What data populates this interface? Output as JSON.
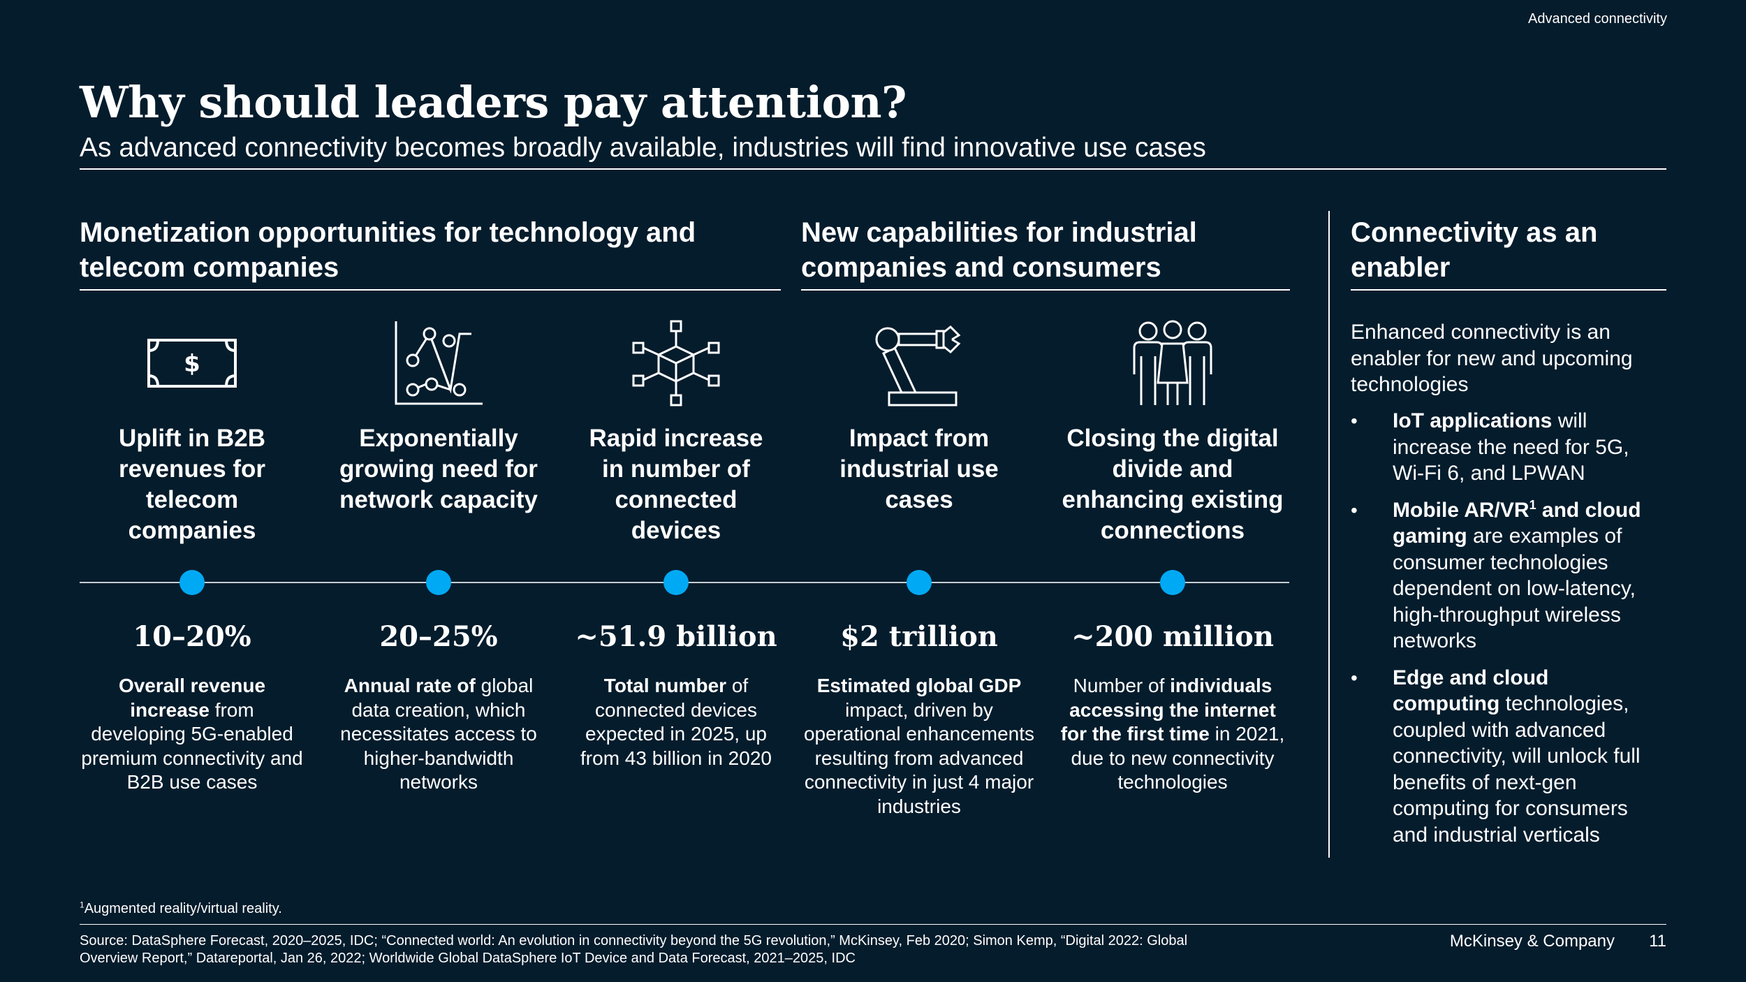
{
  "header": {
    "section_label": "Advanced connectivity",
    "title": "Why should leaders pay attention?",
    "subtitle": "As advanced connectivity becomes broadly available, industries will find innovative use cases"
  },
  "sections": {
    "monetization": "Monetization opportunities for technology and telecom companies",
    "capabilities": "New capabilities for industrial companies and consumers",
    "enabler": "Connectivity as an enabler"
  },
  "columns": [
    {
      "icon": "money-bill-icon",
      "heading": "Uplift in B2B revenues for telecom companies",
      "stat": "10–20%",
      "desc_parts": [
        {
          "text": "Overall revenue increase",
          "bold": true
        },
        {
          "text": " from developing 5G-enabled premium connectivity and B2B use cases",
          "bold": false
        }
      ]
    },
    {
      "icon": "growth-chart-icon",
      "heading": "Exponentially growing need for network capacity",
      "stat": "20–25%",
      "desc_parts": [
        {
          "text": "Annual rate of",
          "bold": true
        },
        {
          "text": " global data creation, which necessitates access to higher-bandwidth networks",
          "bold": false
        }
      ]
    },
    {
      "icon": "connected-devices-icon",
      "heading": "Rapid increase in number of connected devices",
      "stat": "~51.9 billion",
      "desc_parts": [
        {
          "text": "Total number",
          "bold": true
        },
        {
          "text": " of connected devices expected in 2025, up from 43 billion in 2020",
          "bold": false
        }
      ]
    },
    {
      "icon": "robotic-arm-icon",
      "heading": "Impact from industrial use cases",
      "stat": "$2 trillion",
      "desc_parts": [
        {
          "text": "Estimated global GDP",
          "bold": true
        },
        {
          "text": " impact, driven by operational enhancements resulting from advanced connectivity in just 4 major industries",
          "bold": false
        }
      ]
    },
    {
      "icon": "people-group-icon",
      "heading": "Closing the digital divide and enhancing existing connections",
      "stat": "~200 million",
      "desc_parts": [
        {
          "text": "Number of ",
          "bold": false
        },
        {
          "text": "individuals accessing the internet for the first time",
          "bold": true
        },
        {
          "text": " in 2021, due to new connectivity technologies",
          "bold": false
        }
      ]
    }
  ],
  "enabler": {
    "intro": "Enhanced connectivity is an enabler for new and upcoming technologies",
    "bullets": [
      [
        {
          "text": "IoT applications",
          "bold": true
        },
        {
          "text": " will increase the need for 5G, Wi-Fi 6, and LPWAN",
          "bold": false
        }
      ],
      [
        {
          "text": "Mobile AR/VR",
          "bold": true
        },
        {
          "text": "1",
          "bold": true,
          "sup": true
        },
        {
          "text": " and cloud gaming",
          "bold": true
        },
        {
          "text": " are examples of consumer technologies dependent on low-latency, high-throughput wireless networks",
          "bold": false
        }
      ],
      [
        {
          "text": "Edge and cloud computing",
          "bold": true
        },
        {
          "text": " technologies, coupled with advanced connectivity, will unlock full benefits of next-gen computing for consumers and industrial verticals",
          "bold": false
        }
      ]
    ]
  },
  "footer": {
    "footnote_mark": "1",
    "footnote": "Augmented reality/virtual reality.",
    "source": "Source: DataSphere Forecast, 2020–2025, IDC; “Connected world: An evolution in connectivity beyond the 5G revolution,” McKinsey, Feb 2020; Simon Kemp, “Digital 2022: Global Overview Report,” Datareportal, Jan 26, 2022; Worldwide Global DataSphere IoT Device and Data Forecast, 2021–2025, IDC",
    "brand": "McKinsey & Company",
    "page_number": "11"
  },
  "colors": {
    "background": "#051c2c",
    "accent_dot": "#00a9f4",
    "text": "#ffffff"
  }
}
